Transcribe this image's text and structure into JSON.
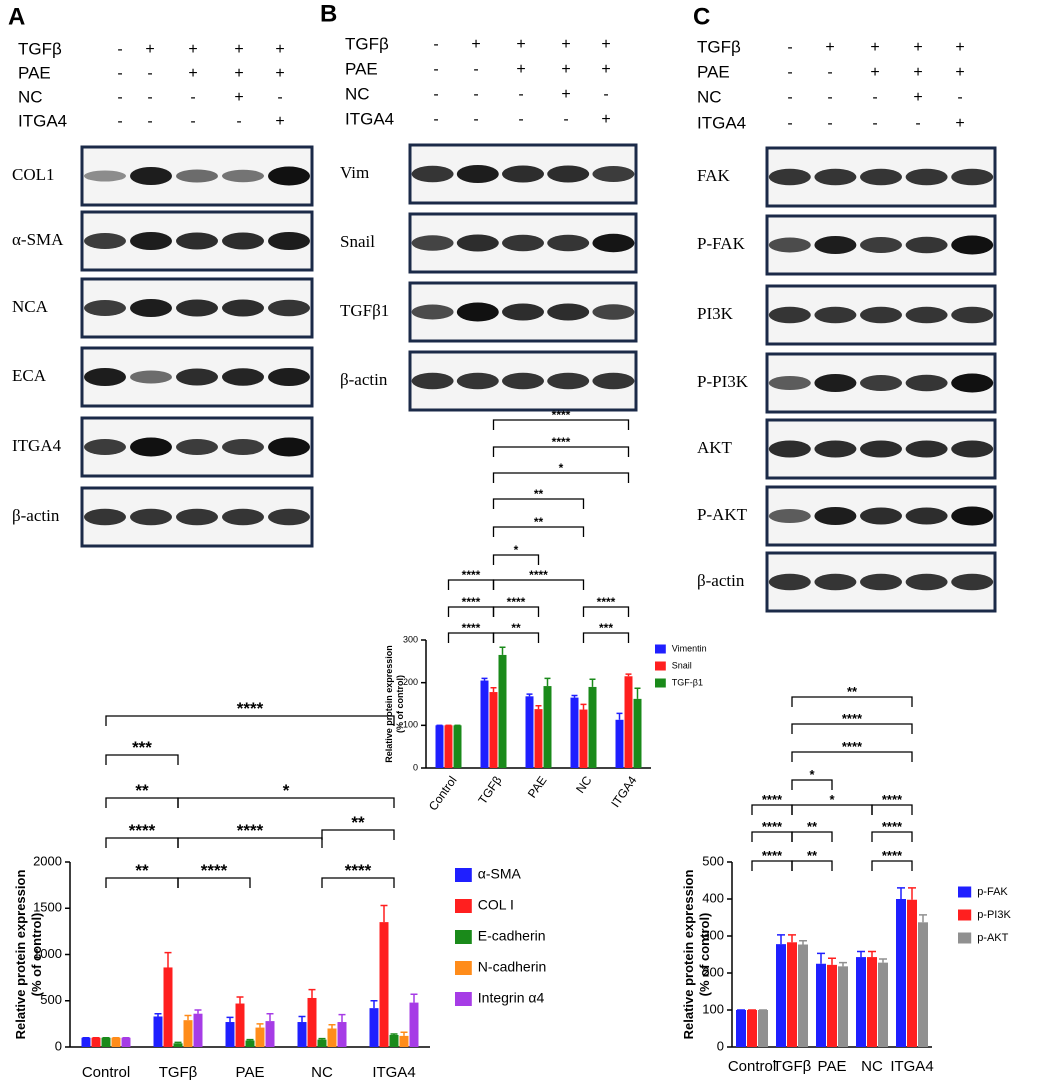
{
  "panels": [
    {
      "label": "A",
      "conditions": [
        {
          "name": "TGFβ",
          "signs": [
            "-",
            "+",
            "+",
            "+",
            "+"
          ]
        },
        {
          "name": "PAE",
          "signs": [
            "-",
            "-",
            "+",
            "+",
            "+"
          ]
        },
        {
          "name": "NC",
          "signs": [
            "-",
            "-",
            "-",
            "+",
            "-"
          ]
        },
        {
          "name": "ITGA4",
          "signs": [
            "-",
            "-",
            "-",
            "-",
            "+"
          ]
        }
      ],
      "blots": [
        "COL1",
        "α-SMA",
        "NCA",
        "ECA",
        "ITGA4",
        "β-actin"
      ]
    },
    {
      "label": "B",
      "conditions": [
        {
          "name": "TGFβ",
          "signs": [
            "-",
            "+",
            "+",
            "+",
            "+"
          ]
        },
        {
          "name": "PAE",
          "signs": [
            "-",
            "-",
            "+",
            "+",
            "+"
          ]
        },
        {
          "name": "NC",
          "signs": [
            "-",
            "-",
            "-",
            "+",
            "-"
          ]
        },
        {
          "name": "ITGA4",
          "signs": [
            "-",
            "-",
            "-",
            "-",
            "+"
          ]
        }
      ],
      "blots": [
        "Vim",
        "Snail",
        "TGFβ1",
        "β-actin"
      ]
    },
    {
      "label": "C",
      "conditions": [
        {
          "name": "TGFβ",
          "signs": [
            "-",
            "+",
            "+",
            "+",
            "+"
          ]
        },
        {
          "name": "PAE",
          "signs": [
            "-",
            "-",
            "+",
            "+",
            "+"
          ]
        },
        {
          "name": "NC",
          "signs": [
            "-",
            "-",
            "-",
            "+",
            "-"
          ]
        },
        {
          "name": "ITGA4",
          "signs": [
            "-",
            "-",
            "-",
            "-",
            "+"
          ]
        }
      ],
      "blots": [
        "FAK",
        "P-FAK",
        "PI3K",
        "P-PI3K",
        "AKT",
        "P-AKT",
        "β-actin"
      ]
    }
  ],
  "chart_data": [
    {
      "type": "bar",
      "ylabel": [
        "Relative protein expression",
        "(% of control)"
      ],
      "categories": [
        "Control",
        "TGFβ",
        "PAE",
        "NC",
        "ITGA4"
      ],
      "ylim": [
        0,
        2000
      ],
      "yticks": [
        0,
        500,
        1000,
        1500,
        2000
      ],
      "series": [
        {
          "name": "α-SMA",
          "color": "#1f1fff",
          "values": [
            100,
            330,
            270,
            270,
            420
          ],
          "errors": [
            0,
            30,
            50,
            60,
            80
          ]
        },
        {
          "name": "COL I",
          "color": "#ff1f1f",
          "values": [
            100,
            860,
            470,
            530,
            1350
          ],
          "errors": [
            0,
            160,
            70,
            90,
            180
          ]
        },
        {
          "name": "E-cadherin",
          "color": "#1a8a1a",
          "values": [
            100,
            40,
            70,
            80,
            130
          ],
          "errors": [
            0,
            10,
            10,
            10,
            10
          ]
        },
        {
          "name": "N-cadherin",
          "color": "#ff8c1a",
          "values": [
            100,
            290,
            210,
            200,
            120
          ],
          "errors": [
            0,
            50,
            40,
            40,
            40
          ]
        },
        {
          "name": "Integrin α4",
          "color": "#a63ce6",
          "values": [
            100,
            360,
            280,
            270,
            480
          ],
          "errors": [
            0,
            40,
            80,
            80,
            90
          ]
        }
      ],
      "annotations": [
        {
          "label": "**",
          "from": "Control",
          "to": "TGFβ"
        },
        {
          "label": "****",
          "from": "TGFβ",
          "to": "PAE"
        },
        {
          "label": "****",
          "from": "NC",
          "to": "ITGA4"
        },
        {
          "label": "****",
          "from": "Control",
          "to": "TGFβ"
        },
        {
          "label": "****",
          "from": "TGFβ",
          "to": "NC"
        },
        {
          "label": "**",
          "from": "NC",
          "to": "ITGA4"
        },
        {
          "label": "**",
          "from": "Control",
          "to": "TGFβ"
        },
        {
          "label": "*",
          "from": "TGFβ",
          "to": "ITGA4"
        },
        {
          "label": "***",
          "from": "Control",
          "to": "TGFβ"
        },
        {
          "label": "****",
          "from": "Control",
          "to": "ITGA4"
        }
      ]
    },
    {
      "type": "bar",
      "ylabel": [
        "Relative protein expression",
        "(% of control)"
      ],
      "categories": [
        "Control",
        "TGFβ",
        "PAE",
        "NC",
        "ITGA4"
      ],
      "ylim": [
        0,
        300
      ],
      "yticks": [
        0,
        100,
        200,
        300
      ],
      "series": [
        {
          "name": "Vimentin",
          "color": "#1f1fff",
          "values": [
            100,
            205,
            168,
            165,
            113
          ],
          "errors": [
            0,
            5,
            5,
            5,
            15
          ]
        },
        {
          "name": "Snail",
          "color": "#ff1f1f",
          "values": [
            100,
            178,
            138,
            137,
            215
          ],
          "errors": [
            0,
            10,
            8,
            12,
            5
          ]
        },
        {
          "name": "TGF-β1",
          "color": "#1a8a1a",
          "values": [
            100,
            265,
            192,
            190,
            162
          ],
          "errors": [
            0,
            18,
            18,
            18,
            25
          ]
        }
      ],
      "annotations": [
        {
          "label": "****",
          "from": "Control",
          "to": "TGFβ"
        },
        {
          "label": "**",
          "from": "TGFβ",
          "to": "PAE"
        },
        {
          "label": "***",
          "from": "NC",
          "to": "ITGA4"
        },
        {
          "label": "****",
          "from": "Control",
          "to": "TGFβ"
        },
        {
          "label": "****",
          "from": "TGFβ",
          "to": "PAE"
        },
        {
          "label": "****",
          "from": "NC",
          "to": "ITGA4"
        },
        {
          "label": "****",
          "from": "Control",
          "to": "TGFβ"
        },
        {
          "label": "****",
          "from": "TGFβ",
          "to": "NC"
        },
        {
          "label": "*",
          "from": "TGFβ",
          "to": "PAE"
        },
        {
          "label": "**",
          "from": "TGFβ",
          "to": "NC"
        },
        {
          "label": "**",
          "from": "TGFβ",
          "to": "NC"
        },
        {
          "label": "*",
          "from": "TGFβ",
          "to": "ITGA4"
        },
        {
          "label": "****",
          "from": "TGFβ",
          "to": "ITGA4"
        },
        {
          "label": "****",
          "from": "TGFβ",
          "to": "ITGA4"
        }
      ]
    },
    {
      "type": "bar",
      "ylabel": [
        "Relative protein expression",
        "(% of control)"
      ],
      "categories": [
        "Control",
        "TGFβ",
        "PAE",
        "NC",
        "ITGA4"
      ],
      "ylim": [
        0,
        500
      ],
      "yticks": [
        0,
        100,
        200,
        300,
        400,
        500
      ],
      "series": [
        {
          "name": "p-FAK",
          "color": "#1f1fff",
          "values": [
            100,
            278,
            225,
            243,
            400
          ],
          "errors": [
            0,
            25,
            28,
            15,
            30
          ]
        },
        {
          "name": "p-PI3K",
          "color": "#ff1f1f",
          "values": [
            100,
            283,
            222,
            243,
            398
          ],
          "errors": [
            0,
            20,
            18,
            15,
            32
          ]
        },
        {
          "name": "p-AKT",
          "color": "#909090",
          "values": [
            100,
            277,
            218,
            228,
            337
          ],
          "errors": [
            0,
            10,
            10,
            10,
            20
          ]
        }
      ],
      "annotations": [
        {
          "label": "****",
          "from": "Control",
          "to": "TGFβ"
        },
        {
          "label": "**",
          "from": "TGFβ",
          "to": "PAE"
        },
        {
          "label": "****",
          "from": "NC",
          "to": "ITGA4"
        },
        {
          "label": "****",
          "from": "Control",
          "to": "TGFβ"
        },
        {
          "label": "**",
          "from": "TGFβ",
          "to": "PAE"
        },
        {
          "label": "****",
          "from": "NC",
          "to": "ITGA4"
        },
        {
          "label": "****",
          "from": "Control",
          "to": "TGFβ"
        },
        {
          "label": "*",
          "from": "TGFβ",
          "to": "NC"
        },
        {
          "label": "****",
          "from": "NC",
          "to": "ITGA4"
        },
        {
          "label": "*",
          "from": "TGFβ",
          "to": "PAE"
        },
        {
          "label": "****",
          "from": "TGFβ",
          "to": "ITGA4"
        },
        {
          "label": "****",
          "from": "TGFβ",
          "to": "ITGA4"
        },
        {
          "label": "**",
          "from": "TGFβ",
          "to": "ITGA4"
        }
      ]
    }
  ]
}
